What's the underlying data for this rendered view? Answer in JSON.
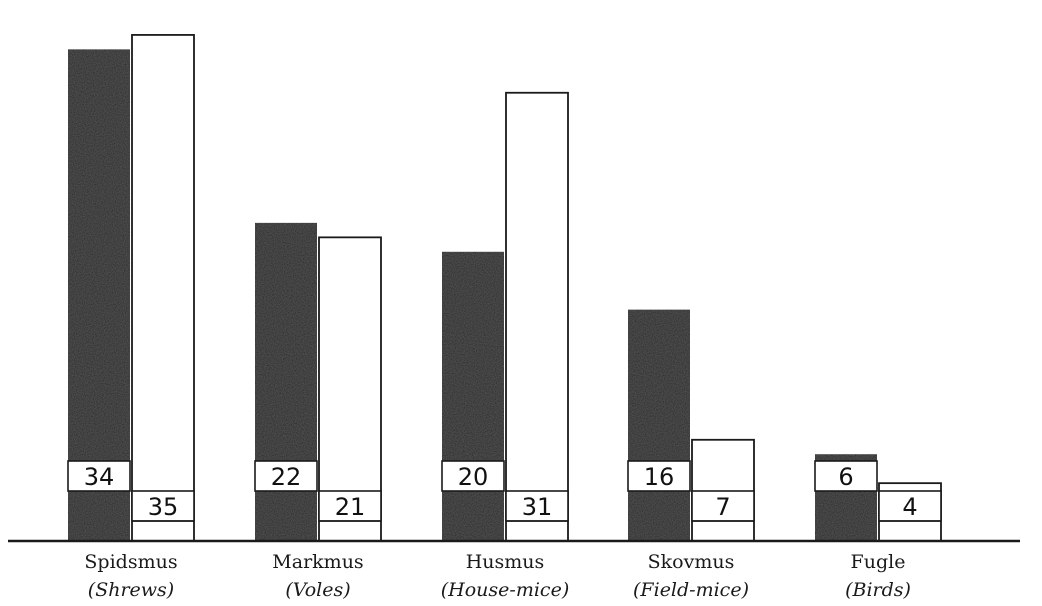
{
  "chart_data": {
    "type": "bar",
    "categories": [
      "Spidsmus",
      "Markmus",
      "Husmus",
      "Skovmus",
      "Fugle"
    ],
    "category_subtitles": [
      "(Shrews)",
      "(Voles)",
      "(House-mice)",
      "(Field-mice)",
      "(Birds)"
    ],
    "series": [
      {
        "values": [
          34,
          22,
          20,
          16,
          6
        ],
        "color": "#222222"
      },
      {
        "values": [
          35,
          21,
          31,
          7,
          4
        ],
        "color": "#ffffff"
      }
    ],
    "ylim": [
      0,
      37
    ],
    "grid": false,
    "legend": "none",
    "title": "",
    "xlabel": "",
    "ylabel": ""
  }
}
